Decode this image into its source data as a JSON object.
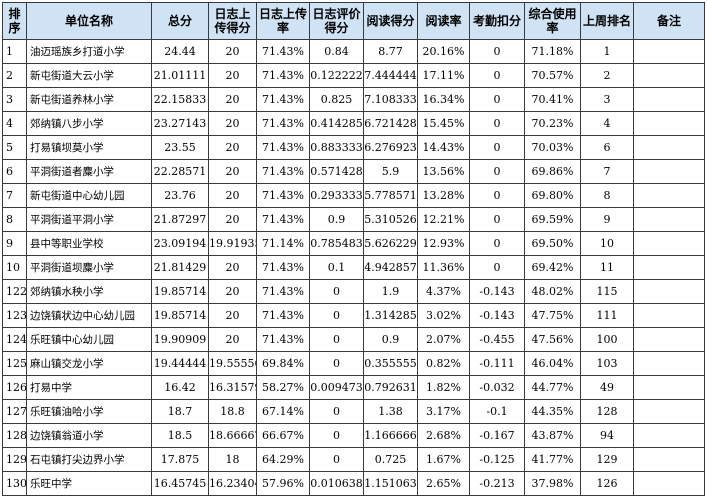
{
  "table": {
    "headers": [
      "排序",
      "单位名称",
      "总分",
      "日志上传得分",
      "日志上传率",
      "日志评价得分",
      "阅读得分",
      "阅读率",
      "考勤扣分",
      "综合使用率",
      "上周排名",
      "备注"
    ],
    "rows": [
      [
        "1",
        "油迈瑶族乡打道小学",
        "24.44",
        "20",
        "71.43%",
        "0.84",
        "8.77",
        "20.16%",
        "0",
        "71.18%",
        "1",
        ""
      ],
      [
        "2",
        "新屯街道大云小学",
        "21.01111",
        "20",
        "71.43%",
        "0.122222",
        "7.444444",
        "17.11%",
        "0",
        "70.57%",
        "2",
        ""
      ],
      [
        "3",
        "新屯街道养林小学",
        "22.15833",
        "20",
        "71.43%",
        "0.825",
        "7.108333",
        "16.34%",
        "0",
        "70.41%",
        "3",
        ""
      ],
      [
        "4",
        "郊纳镇八步小学",
        "23.27143",
        "20",
        "71.43%",
        "0.414285",
        "6.721428",
        "15.45%",
        "0",
        "70.23%",
        "4",
        ""
      ],
      [
        "5",
        "打易镇坝莫小学",
        "23.55",
        "20",
        "71.43%",
        "0.883333",
        "6.276923",
        "14.43%",
        "0",
        "70.03%",
        "6",
        ""
      ],
      [
        "6",
        "平洞街道者麋小学",
        "22.28571",
        "20",
        "71.43%",
        "0.571428",
        "5.9",
        "13.56%",
        "0",
        "69.86%",
        "7",
        ""
      ],
      [
        "7",
        "新屯街道中心幼儿园",
        "23.76",
        "20",
        "71.43%",
        "0.293333",
        "5.778571",
        "13.28%",
        "0",
        "69.80%",
        "8",
        ""
      ],
      [
        "8",
        "平洞街道平洞小学",
        "21.87297",
        "20",
        "71.43%",
        "0.9",
        "5.310526",
        "12.21%",
        "0",
        "69.59%",
        "9",
        ""
      ],
      [
        "9",
        "县中等职业学校",
        "23.09194",
        "19.91935",
        "71.14%",
        "0.785483",
        "5.626229",
        "12.93%",
        "0",
        "69.50%",
        "10",
        ""
      ],
      [
        "10",
        "平洞街道坝麋小学",
        "21.81429",
        "20",
        "71.43%",
        "0.1",
        "4.942857",
        "11.36%",
        "0",
        "69.42%",
        "11",
        ""
      ],
      [
        "122",
        "郊纳镇水秧小学",
        "19.85714",
        "20",
        "71.43%",
        "0",
        "1.9",
        "4.37%",
        "-0.143",
        "48.02%",
        "115",
        ""
      ],
      [
        "123",
        "边饶镇状边中心幼儿园",
        "19.85714",
        "20",
        "71.43%",
        "0",
        "1.314285",
        "3.02%",
        "-0.143",
        "47.75%",
        "111",
        ""
      ],
      [
        "124",
        "乐旺镇中心幼儿园",
        "19.90909",
        "20",
        "71.43%",
        "0",
        "0.9",
        "2.07%",
        "-0.455",
        "47.56%",
        "100",
        ""
      ],
      [
        "125",
        "麻山镇交龙小学",
        "19.44444",
        "19.55556",
        "69.84%",
        "0",
        "0.355555",
        "0.82%",
        "-0.111",
        "46.04%",
        "103",
        ""
      ],
      [
        "126",
        "打易中学",
        "16.42",
        "16.31579",
        "58.27%",
        "0.009473",
        "0.792631",
        "1.82%",
        "-0.032",
        "44.77%",
        "49",
        ""
      ],
      [
        "127",
        "乐旺镇油哈小学",
        "18.7",
        "18.8",
        "67.14%",
        "0",
        "1.38",
        "3.17%",
        "-0.1",
        "44.35%",
        "128",
        ""
      ],
      [
        "128",
        "边饶镇翁道小学",
        "18.5",
        "18.66667",
        "66.67%",
        "0",
        "1.166666",
        "2.68%",
        "-0.167",
        "43.87%",
        "94",
        ""
      ],
      [
        "129",
        "石屯镇打尖边界小学",
        "17.875",
        "18",
        "64.29%",
        "0",
        "0.725",
        "1.67%",
        "-0.125",
        "41.77%",
        "129",
        ""
      ],
      [
        "130",
        "乐旺中学",
        "16.45745",
        "16.23404",
        "57.96%",
        "0.010638",
        "1.151063",
        "2.65%",
        "-0.213",
        "37.98%",
        "126",
        ""
      ]
    ]
  }
}
